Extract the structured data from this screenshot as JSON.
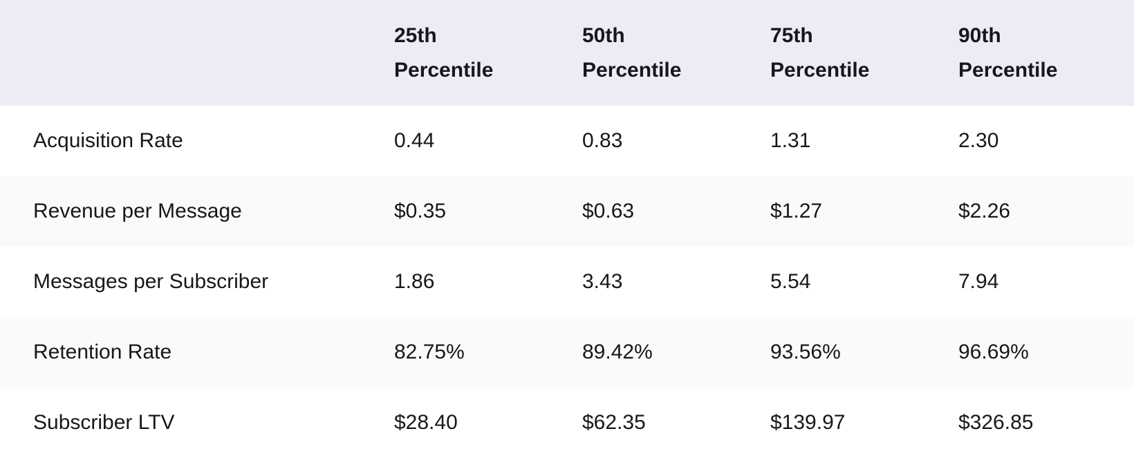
{
  "colors": {
    "header_bg": "#edebf5",
    "zebra_row_bg": "#fafafb",
    "row_bg": "#ffffff",
    "text": "#17171b"
  },
  "chart_data": {
    "type": "table",
    "title": "",
    "columns": [
      "25th Percentile",
      "50th Percentile",
      "75th Percentile",
      "90th Percentile"
    ],
    "rows": [
      {
        "label": "Acquisition Rate",
        "values": [
          "0.44",
          "0.83",
          "1.31",
          "2.30"
        ]
      },
      {
        "label": "Revenue per Message",
        "values": [
          "$0.35",
          "$0.63",
          "$1.27",
          "$2.26"
        ]
      },
      {
        "label": "Messages per Subscriber",
        "values": [
          "1.86",
          "3.43",
          "5.54",
          "7.94"
        ]
      },
      {
        "label": "Retention Rate",
        "values": [
          "82.75%",
          "89.42%",
          "93.56%",
          "96.69%"
        ]
      },
      {
        "label": "Subscriber LTV",
        "values": [
          "$28.40",
          "$62.35",
          "$139.97",
          "$326.85"
        ]
      }
    ]
  }
}
